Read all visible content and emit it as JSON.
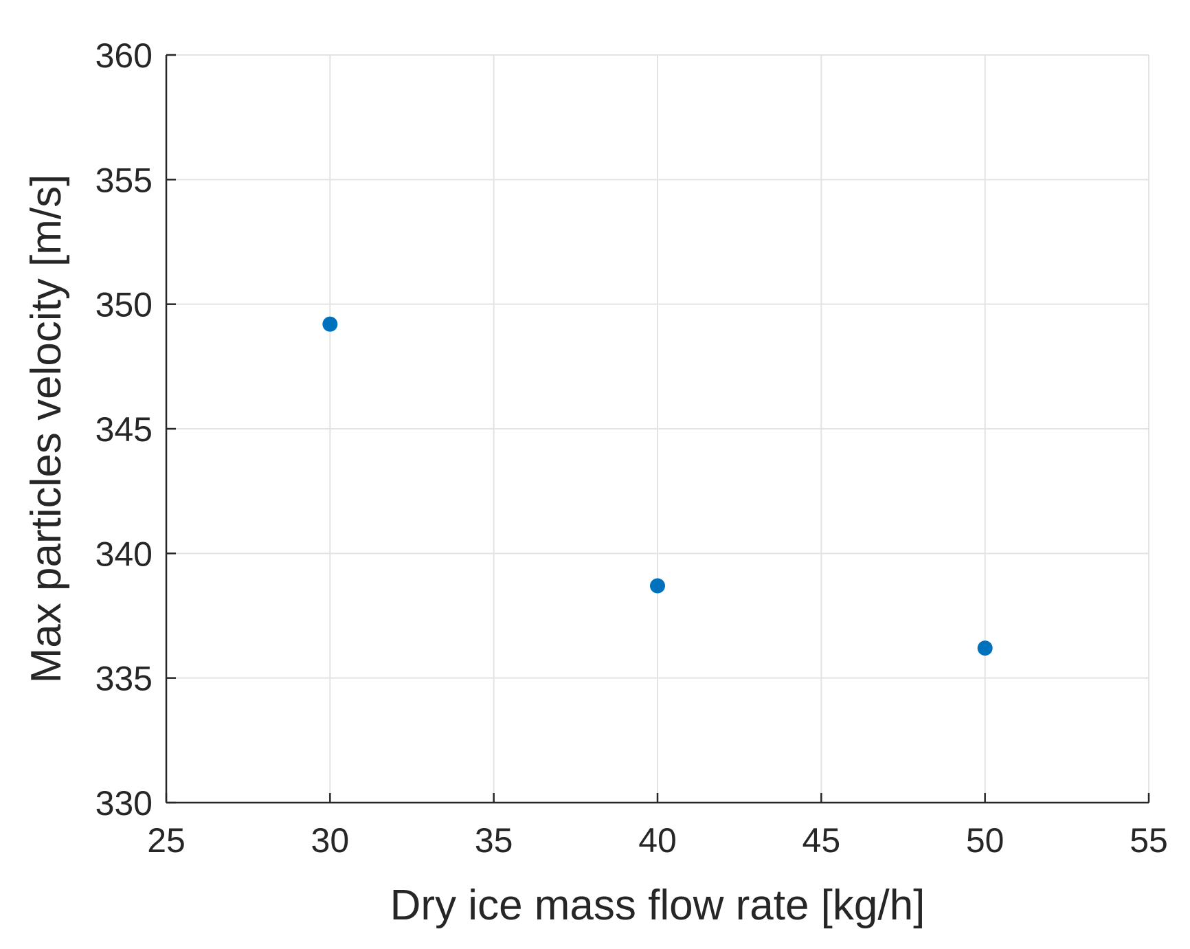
{
  "chart_data": {
    "type": "scatter",
    "title": "",
    "xlabel": "Dry ice mass flow rate [kg/h]",
    "ylabel": "Max particles velocity [m/s]",
    "xlim": [
      25,
      55
    ],
    "ylim": [
      330,
      360
    ],
    "xticks": [
      25,
      30,
      35,
      40,
      45,
      50,
      55
    ],
    "yticks": [
      330,
      335,
      340,
      345,
      350,
      355,
      360
    ],
    "grid": true,
    "marker_color": "#0072BD",
    "series": [
      {
        "points": [
          {
            "x": 30,
            "y": 349.2
          },
          {
            "x": 40,
            "y": 338.7
          },
          {
            "x": 50,
            "y": 336.2
          }
        ]
      }
    ]
  }
}
